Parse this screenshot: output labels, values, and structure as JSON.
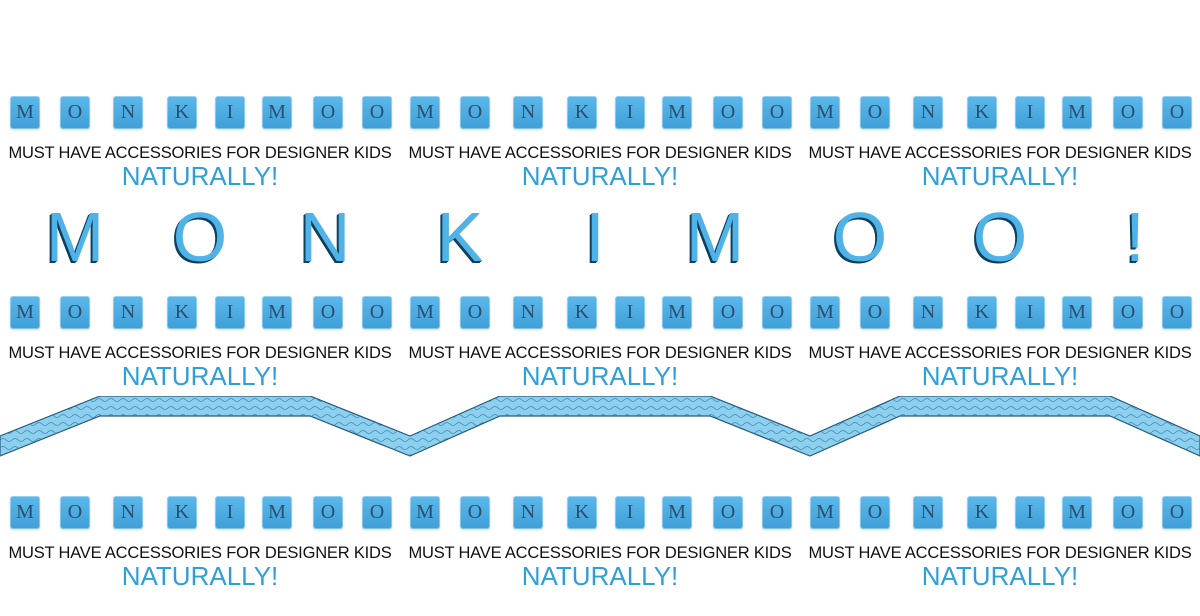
{
  "banner": {
    "tile_letters": [
      "M",
      "O",
      "N",
      "K",
      "I",
      "M",
      "O",
      "O"
    ],
    "tagline": "MUST HAVE ACCESSORIES FOR DESIGNER KIDS",
    "slogan": "NATURALLY!"
  },
  "big_title": [
    "M",
    "O",
    "N",
    "K",
    "I",
    "M",
    "O",
    "O",
    "!"
  ],
  "colors": {
    "tile_blue": "#4aa9e2",
    "slogan_blue": "#2f9fdc",
    "title_blue": "#4fb3e8",
    "zigzag_blue": "#8ccfee",
    "text_dark": "#111111"
  }
}
